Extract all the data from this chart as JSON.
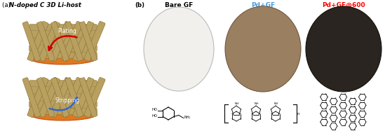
{
  "title_a": "(a) N-doped C 3D Li-host",
  "title_b": "(b)",
  "label1": "Bare GF",
  "label2": "Pd+GF",
  "label3": "Pd+GF@600",
  "label2_color": "#4499DD",
  "label3_color": "#FF0000",
  "bg_color": "#ffffff",
  "arrow_plating_color": "#CC0000",
  "arrow_stripping_color": "#3366CC",
  "plating_text": "Plating",
  "stripping_text": "Stripping",
  "fiber_color": "#B8A060",
  "fiber_edge": "#8B7030",
  "base_color": "#E07820",
  "base_edge": "#C05010",
  "disc1_face": "#F2F0EC",
  "disc1_edge": "#BBBBBB",
  "disc2_face": "#9A8060",
  "disc2_edge": "#705840",
  "disc3_face": "#2A2520",
  "disc3_edge": "#111008",
  "fig_width": 5.49,
  "fig_height": 1.87,
  "dpi": 100
}
